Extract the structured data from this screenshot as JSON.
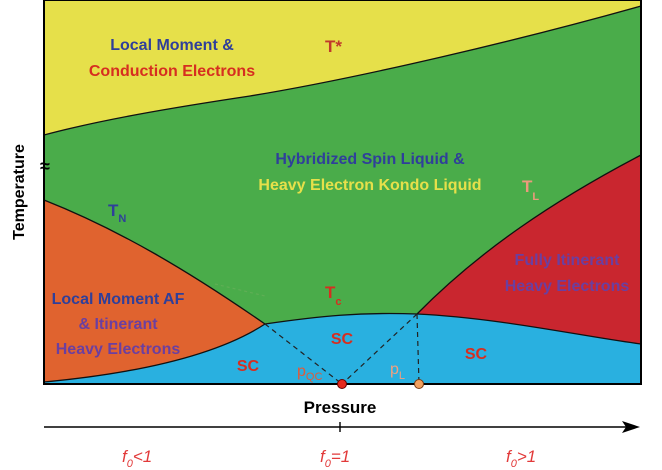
{
  "axes": {
    "ylabel": "Temperature",
    "xlabel": "Pressure",
    "break_mark": "≈"
  },
  "regions": {
    "local_moment": {
      "line1": "Local Moment &",
      "line2": "Conduction Electrons"
    },
    "hybridized": {
      "line1": "Hybridized Spin Liquid &",
      "line2": "Heavy Electron Kondo Liquid"
    },
    "local_moment_af": {
      "line1": "Local Moment AF",
      "line2": "& Itinerant",
      "line3": "Heavy Electrons"
    },
    "fully_itinerant": {
      "line1": "Fully Itinerant",
      "line2": "Heavy Electrons"
    },
    "sc_labels": [
      "SC",
      "SC",
      "SC"
    ]
  },
  "curve_labels": {
    "t_star": "T*",
    "t_n": {
      "main": "T",
      "sub": "N"
    },
    "t_l": {
      "main": "T",
      "sub": "L"
    },
    "t_c": {
      "main": "T",
      "sub": "c"
    }
  },
  "points": {
    "p_qc": {
      "main": "p",
      "sub": "QC"
    },
    "p_l": {
      "main": "p",
      "sub": "L"
    }
  },
  "bottom_scale": {
    "left": {
      "main": "f",
      "sub": "0",
      "rest": "<1"
    },
    "center": {
      "main": "f",
      "sub": "0",
      "rest": "=1"
    },
    "right": {
      "main": "f",
      "sub": "0",
      "rest": ">1"
    }
  },
  "colors": {
    "yellow": "#e6e04a",
    "green": "#4aac4a",
    "orange": "#e0632f",
    "red": "#c9262f",
    "blue": "#29b0e0",
    "navy": "#2f3f9a",
    "label_red": "#d62e20",
    "purple": "#6b3fa0",
    "salmon": "#ec9a7c",
    "bottom_red": "#e23a3a"
  }
}
